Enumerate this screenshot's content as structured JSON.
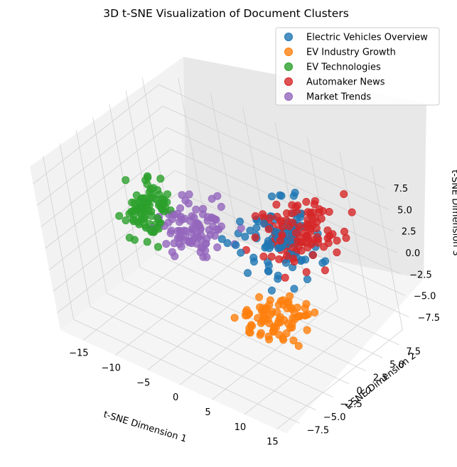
{
  "chart_data": {
    "type": "scatter",
    "title": "3D t-SNE Visualization of Document Clusters",
    "xlabel": "t-SNE Dimension 1",
    "ylabel": "t-SNE Dimension 2",
    "zlabel": "t-SNE Dimension 3",
    "xticks": [
      "−15",
      "−10",
      "−5",
      "0",
      "5",
      "10",
      "15"
    ],
    "yticks": [
      "−7.5",
      "−5.0",
      "−2.5",
      "0.0",
      "2.5",
      "5.0",
      "7.5"
    ],
    "zticks": [
      "−7.5",
      "−5.0",
      "−2.5",
      "0.0",
      "2.5",
      "5.0",
      "7.5"
    ],
    "grid": true,
    "legend_position": "top-right",
    "series": [
      {
        "name": "Electric Vehicles Overview",
        "color": "#1f77b4"
      },
      {
        "name": "EV Industry Growth",
        "color": "#ff7f0e"
      },
      {
        "name": "EV Technologies",
        "color": "#2ca02c"
      },
      {
        "name": "Automaker News",
        "color": "#d62728"
      },
      {
        "name": "Market Trends",
        "color": "#9467bd"
      }
    ]
  }
}
